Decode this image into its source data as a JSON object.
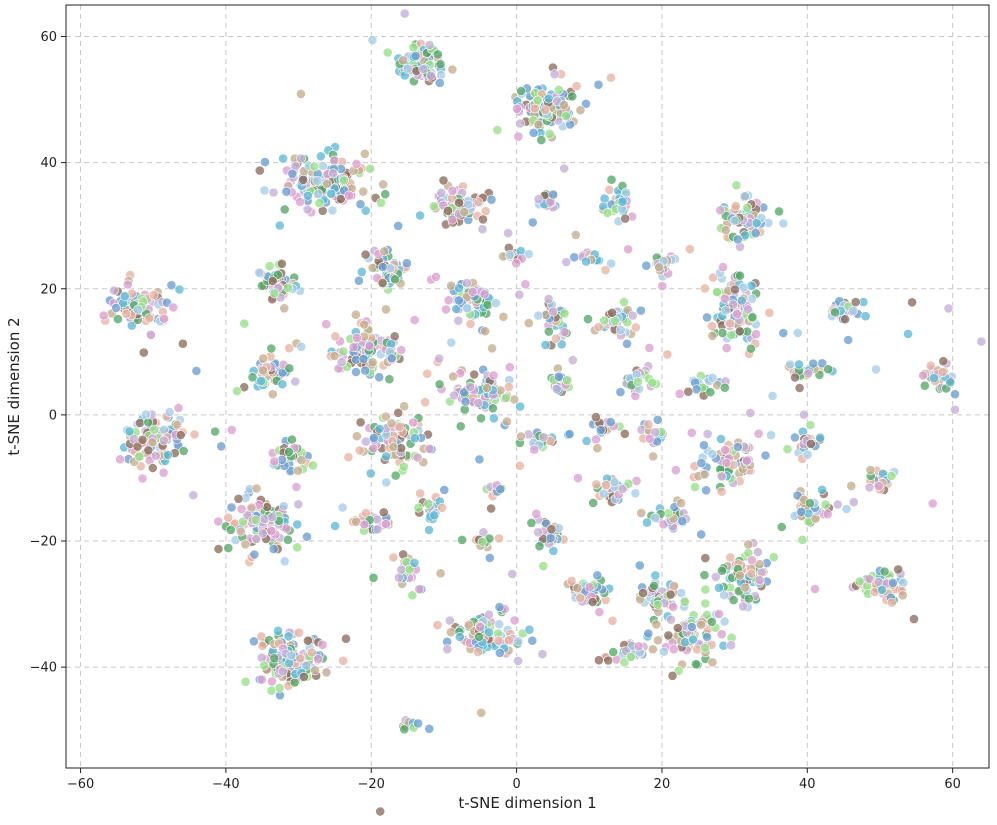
{
  "chart_data": {
    "type": "scatter",
    "title": "",
    "xlabel": "t-SNE dimension 1",
    "ylabel": "t-SNE dimension 2",
    "xlim": [
      -62,
      65
    ],
    "ylim": [
      -56,
      65
    ],
    "xticks": [
      -60,
      -40,
      -20,
      0,
      20,
      40,
      60
    ],
    "yticks": [
      -40,
      -20,
      0,
      20,
      40,
      60
    ],
    "grid": true,
    "legend": "none",
    "palette": [
      "#8c6d5f",
      "#98df8a",
      "#dba0d0",
      "#a6cde8",
      "#c5b0d5",
      "#6b9fd1",
      "#e7b3a4",
      "#5fb8d6",
      "#55a868",
      "#c4ad8e"
    ],
    "clusters": [
      {
        "x": -13,
        "y": 56,
        "rx": 2.5,
        "ry": 2.8,
        "n": 70
      },
      {
        "x": 4,
        "y": 49,
        "rx": 4,
        "ry": 3.5,
        "n": 110
      },
      {
        "x": -26,
        "y": 37,
        "rx": 5,
        "ry": 3.5,
        "n": 130
      },
      {
        "x": -8,
        "y": 33,
        "rx": 3.5,
        "ry": 2,
        "n": 60
      },
      {
        "x": 4,
        "y": 34,
        "rx": 1.5,
        "ry": 1.5,
        "n": 20
      },
      {
        "x": 14,
        "y": 34,
        "rx": 2,
        "ry": 2,
        "n": 30
      },
      {
        "x": 31,
        "y": 31,
        "rx": 3,
        "ry": 3,
        "n": 60
      },
      {
        "x": -52,
        "y": 17,
        "rx": 3,
        "ry": 3,
        "n": 80
      },
      {
        "x": -33,
        "y": 21,
        "rx": 2.5,
        "ry": 2.5,
        "n": 40
      },
      {
        "x": -18,
        "y": 23,
        "rx": 2.5,
        "ry": 2.5,
        "n": 50
      },
      {
        "x": -6,
        "y": 18,
        "rx": 3,
        "ry": 3,
        "n": 60
      },
      {
        "x": 0,
        "y": 25.5,
        "rx": 1.5,
        "ry": 1,
        "n": 12
      },
      {
        "x": 9.5,
        "y": 25,
        "rx": 2,
        "ry": 1,
        "n": 15
      },
      {
        "x": 20,
        "y": 24,
        "rx": 2,
        "ry": 1.5,
        "n": 25
      },
      {
        "x": 5,
        "y": 15,
        "rx": 2,
        "ry": 2.5,
        "n": 30
      },
      {
        "x": 14,
        "y": 15,
        "rx": 2.5,
        "ry": 2,
        "n": 35
      },
      {
        "x": 30,
        "y": 17,
        "rx": 3,
        "ry": 5,
        "n": 90
      },
      {
        "x": 45,
        "y": 17,
        "rx": 2,
        "ry": 1.5,
        "n": 25
      },
      {
        "x": -20,
        "y": 10,
        "rx": 4,
        "ry": 3.5,
        "n": 90
      },
      {
        "x": -34,
        "y": 7,
        "rx": 2.5,
        "ry": 2.5,
        "n": 40
      },
      {
        "x": -5,
        "y": 3,
        "rx": 4,
        "ry": 3,
        "n": 80
      },
      {
        "x": 6,
        "y": 5,
        "rx": 1.5,
        "ry": 1.5,
        "n": 20
      },
      {
        "x": 16,
        "y": 5,
        "rx": 2,
        "ry": 2,
        "n": 25
      },
      {
        "x": 26,
        "y": 5,
        "rx": 2,
        "ry": 1.5,
        "n": 20
      },
      {
        "x": 40,
        "y": 7,
        "rx": 2,
        "ry": 1.5,
        "n": 25
      },
      {
        "x": 58,
        "y": 6,
        "rx": 2,
        "ry": 2,
        "n": 25
      },
      {
        "x": -50,
        "y": -4,
        "rx": 4,
        "ry": 3.5,
        "n": 90
      },
      {
        "x": -31,
        "y": -7,
        "rx": 2,
        "ry": 2.5,
        "n": 30
      },
      {
        "x": -17,
        "y": -4,
        "rx": 4,
        "ry": 4,
        "n": 80
      },
      {
        "x": 3,
        "y": -4,
        "rx": 2,
        "ry": 1.5,
        "n": 20
      },
      {
        "x": 12,
        "y": -2,
        "rx": 2,
        "ry": 1.5,
        "n": 15
      },
      {
        "x": 19,
        "y": -3,
        "rx": 1.5,
        "ry": 1.5,
        "n": 15
      },
      {
        "x": 29,
        "y": -8,
        "rx": 4,
        "ry": 3,
        "n": 70
      },
      {
        "x": 40,
        "y": -4,
        "rx": 1.5,
        "ry": 2,
        "n": 20
      },
      {
        "x": 50,
        "y": -10,
        "rx": 2,
        "ry": 1.5,
        "n": 20
      },
      {
        "x": -35,
        "y": -17,
        "rx": 4.5,
        "ry": 4,
        "n": 110
      },
      {
        "x": -20,
        "y": -17,
        "rx": 3,
        "ry": 1.5,
        "n": 25
      },
      {
        "x": -12,
        "y": -15,
        "rx": 1.5,
        "ry": 2,
        "n": 20
      },
      {
        "x": -3,
        "y": -12,
        "rx": 1.5,
        "ry": 1,
        "n": 12
      },
      {
        "x": 5,
        "y": -19,
        "rx": 2,
        "ry": 2,
        "n": 25
      },
      {
        "x": 13,
        "y": -12,
        "rx": 2,
        "ry": 2,
        "n": 25
      },
      {
        "x": 21,
        "y": -16,
        "rx": 2,
        "ry": 1.5,
        "n": 25
      },
      {
        "x": 40,
        "y": -15,
        "rx": 2.5,
        "ry": 2.5,
        "n": 35
      },
      {
        "x": -5,
        "y": -20,
        "rx": 1.5,
        "ry": 1,
        "n": 12
      },
      {
        "x": -15,
        "y": -25,
        "rx": 1.5,
        "ry": 2.5,
        "n": 25
      },
      {
        "x": 31,
        "y": -26,
        "rx": 3.5,
        "ry": 3,
        "n": 70
      },
      {
        "x": 10,
        "y": -28,
        "rx": 3,
        "ry": 2,
        "n": 50
      },
      {
        "x": 20,
        "y": -29,
        "rx": 2.5,
        "ry": 2,
        "n": 40
      },
      {
        "x": 50,
        "y": -27,
        "rx": 3,
        "ry": 2.5,
        "n": 50
      },
      {
        "x": -4,
        "y": -35,
        "rx": 4,
        "ry": 3,
        "n": 80
      },
      {
        "x": 24,
        "y": -35,
        "rx": 3.5,
        "ry": 3.5,
        "n": 80
      },
      {
        "x": 15,
        "y": -38,
        "rx": 2.5,
        "ry": 1.5,
        "n": 25
      },
      {
        "x": -31,
        "y": -39,
        "rx": 4,
        "ry": 3.5,
        "n": 110
      },
      {
        "x": -15,
        "y": -49.5,
        "rx": 1.2,
        "ry": 1,
        "n": 10
      }
    ],
    "scattered_count": 160
  }
}
